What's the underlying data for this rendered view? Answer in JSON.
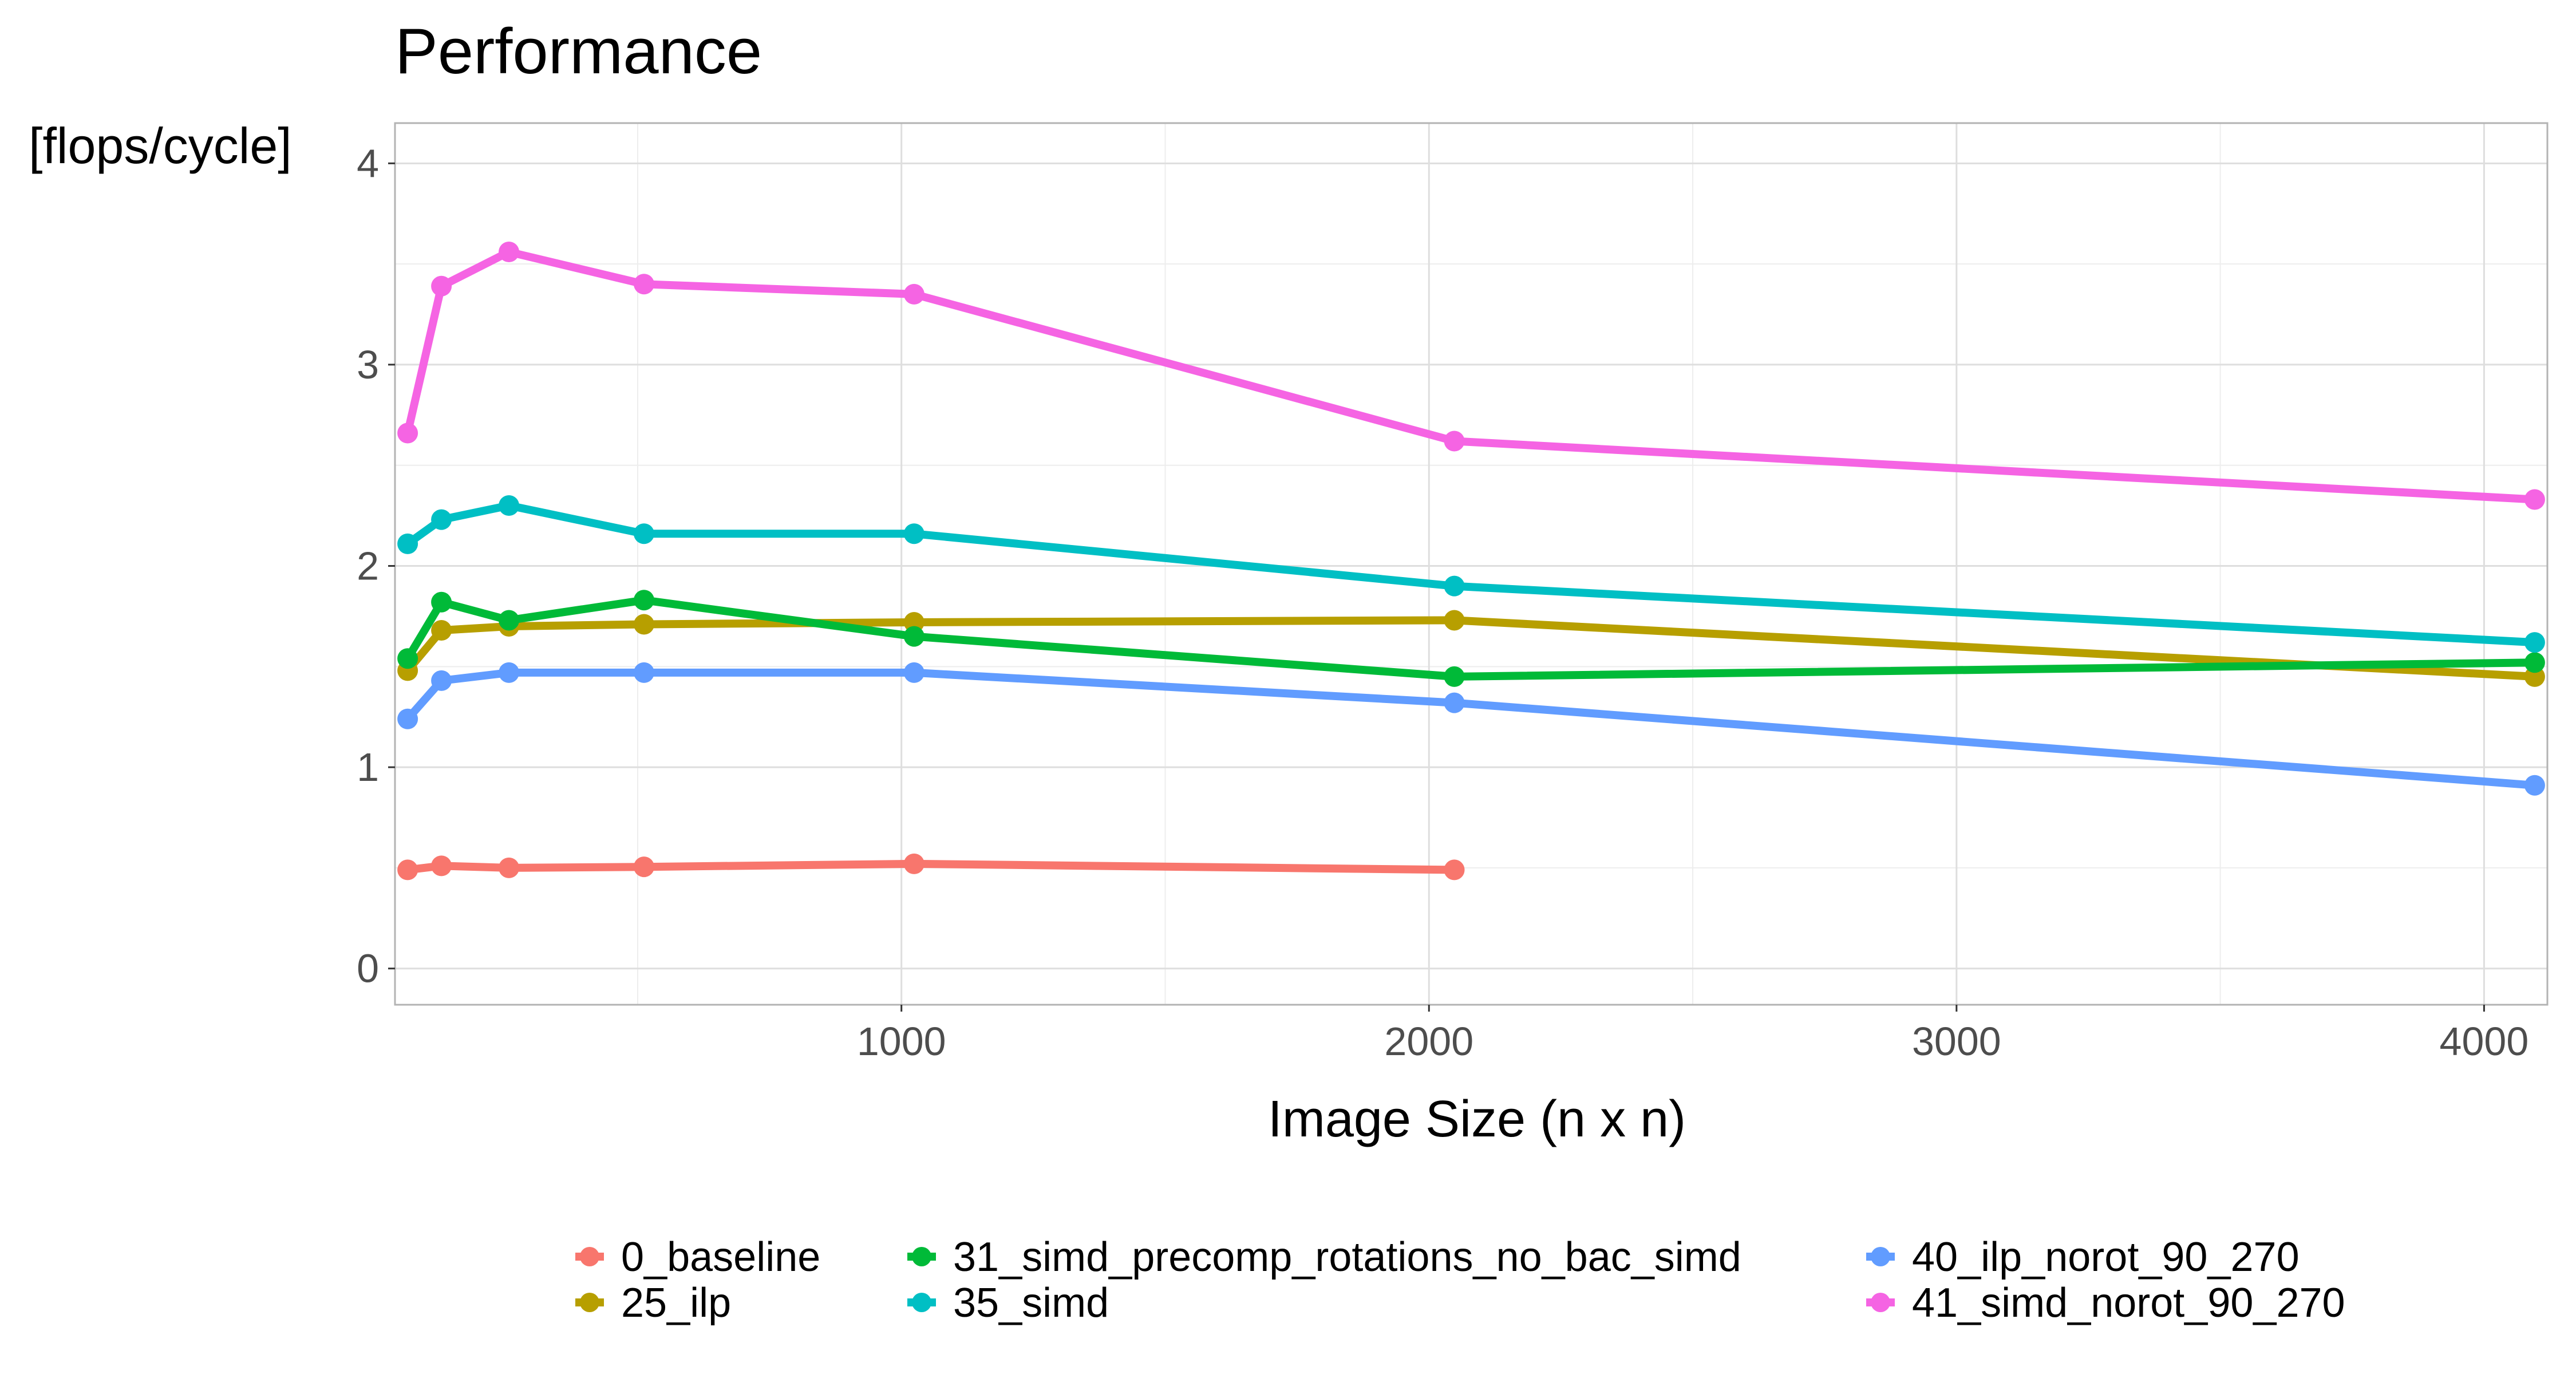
{
  "chart_data": {
    "type": "line",
    "title": "Performance",
    "ylabel": "[flops/cycle]",
    "xlabel": "Image Size (n x n)",
    "xlim": [
      40,
      4120
    ],
    "ylim": [
      -0.18,
      4.2
    ],
    "x_ticks": [
      1000,
      2000,
      3000,
      4000
    ],
    "x_minor": [
      500,
      1500,
      2500,
      3500
    ],
    "y_ticks": [
      0,
      1,
      2,
      3,
      4
    ],
    "y_minor": [
      0.5,
      1.5,
      2.5,
      3.5
    ],
    "grid": true,
    "legend_position": "bottom",
    "series": [
      {
        "name": "0_baseline",
        "color": "#F8766D",
        "x": [
          64,
          128,
          256,
          512,
          1024,
          2048
        ],
        "values": [
          0.49,
          0.51,
          0.5,
          0.505,
          0.52,
          0.49
        ]
      },
      {
        "name": "25_ilp",
        "color": "#B79F00",
        "x": [
          64,
          128,
          256,
          512,
          1024,
          2048,
          4096
        ],
        "values": [
          1.48,
          1.68,
          1.7,
          1.71,
          1.72,
          1.73,
          1.45
        ]
      },
      {
        "name": "31_simd_precomp_rotations_no_bac_simd",
        "color": "#00BA38",
        "x": [
          64,
          128,
          256,
          512,
          1024,
          2048,
          4096
        ],
        "values": [
          1.54,
          1.82,
          1.73,
          1.83,
          1.65,
          1.45,
          1.52
        ]
      },
      {
        "name": "35_simd",
        "color": "#00BFC4",
        "x": [
          64,
          128,
          256,
          512,
          1024,
          2048,
          4096
        ],
        "values": [
          2.11,
          2.23,
          2.3,
          2.16,
          2.16,
          1.9,
          1.62
        ]
      },
      {
        "name": "40_ilp_norot_90_270",
        "color": "#619CFF",
        "x": [
          64,
          128,
          256,
          512,
          1024,
          2048,
          4096
        ],
        "values": [
          1.24,
          1.43,
          1.47,
          1.47,
          1.47,
          1.32,
          0.91
        ]
      },
      {
        "name": "41_simd_norot_90_270",
        "color": "#F564E3",
        "x": [
          64,
          128,
          256,
          512,
          1024,
          2048,
          4096
        ],
        "values": [
          2.66,
          3.39,
          3.56,
          3.4,
          3.35,
          2.62,
          2.33
        ]
      }
    ]
  }
}
